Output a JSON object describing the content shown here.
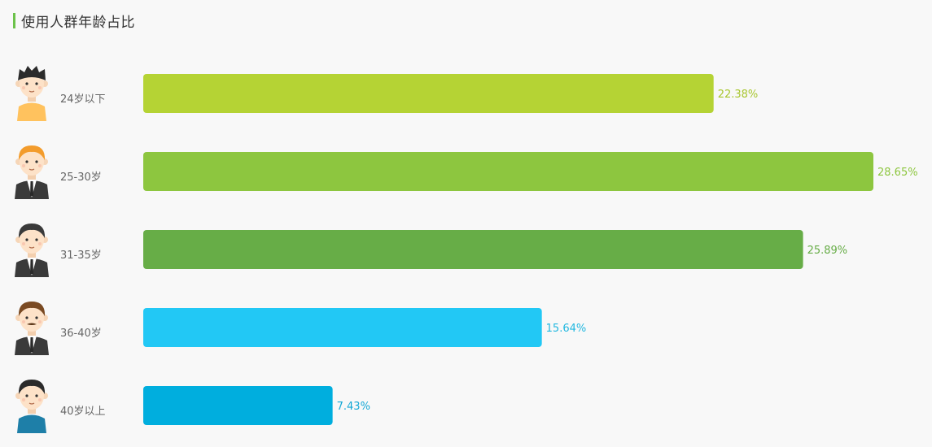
{
  "chart_data": {
    "type": "bar",
    "orientation": "horizontal",
    "title": "使用人群年龄占比",
    "categories": [
      "24岁以下",
      "25-30岁",
      "31-35岁",
      "36-40岁",
      "40岁以上"
    ],
    "values": [
      22.38,
      28.65,
      25.89,
      15.64,
      7.43
    ],
    "value_labels": [
      "22.38%",
      "28.65%",
      "25.89%",
      "15.64%",
      "7.43%"
    ],
    "colors": [
      "#b5d334",
      "#8dc63f",
      "#67ad47",
      "#22c8f5",
      "#00aede"
    ],
    "label_colors": [
      "#a8c62e",
      "#8dc63f",
      "#67ad47",
      "#22b8e0",
      "#14a8d6"
    ],
    "avatars": [
      {
        "icon": "young-boy-avatar-icon",
        "hair": "#2b2b2b",
        "shirt": "#ffc25e",
        "suit": false
      },
      {
        "icon": "orange-hair-man-avatar-icon",
        "hair": "#f39c2c",
        "shirt": "#ffffff",
        "suit": true
      },
      {
        "icon": "businessman-avatar-icon",
        "hair": "#3a3a3a",
        "shirt": "#ffffff",
        "suit": true
      },
      {
        "icon": "mustache-man-avatar-icon",
        "hair": "#7a4a22",
        "shirt": "#ffffff",
        "suit": true
      },
      {
        "icon": "older-man-avatar-icon",
        "hair": "#2b2b2b",
        "shirt": "#1e7fa8",
        "suit": false
      }
    ],
    "grid": false,
    "legend": "none"
  }
}
